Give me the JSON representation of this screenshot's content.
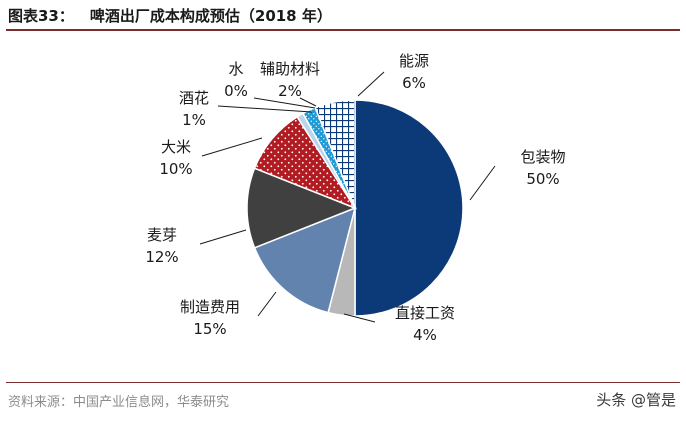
{
  "figure": {
    "label": "图表33：",
    "title": "啤酒出厂成本构成预估（2018 年）"
  },
  "chart_data": {
    "type": "pie",
    "title": "啤酒出厂成本构成预估（2018 年）",
    "slices": [
      {
        "name": "包装物",
        "value": 50,
        "label": "50%",
        "color": "#0c3a78",
        "pattern": "solid"
      },
      {
        "name": "直接工资",
        "value": 4,
        "label": "4%",
        "color": "#b8b8b8",
        "pattern": "solid"
      },
      {
        "name": "制造费用",
        "value": 15,
        "label": "15%",
        "color": "#6283ad",
        "pattern": "solid"
      },
      {
        "name": "麦芽",
        "value": 12,
        "label": "12%",
        "color": "#404040",
        "pattern": "solid"
      },
      {
        "name": "大米",
        "value": 10,
        "label": "10%",
        "color": "#b01c22",
        "pattern": "dots"
      },
      {
        "name": "酒花",
        "value": 1,
        "label": "1%",
        "color": "#bcd3ea",
        "pattern": "solid"
      },
      {
        "name": "水",
        "value": 0,
        "label": "0%",
        "color": "#d9d9d9",
        "pattern": "solid"
      },
      {
        "name": "辅助材料",
        "value": 2,
        "label": "2%",
        "color": "#1e9ad6",
        "pattern": "dots"
      },
      {
        "name": "能源",
        "value": 6,
        "label": "6%",
        "color": "#0c3a78",
        "pattern": "grid"
      }
    ],
    "start_angle_deg": 0,
    "direction": "clockwise",
    "label_style": "external labels with leader lines"
  },
  "source": "资料来源：中国产业信息网，华泰研究",
  "watermark": "头条 @管是"
}
